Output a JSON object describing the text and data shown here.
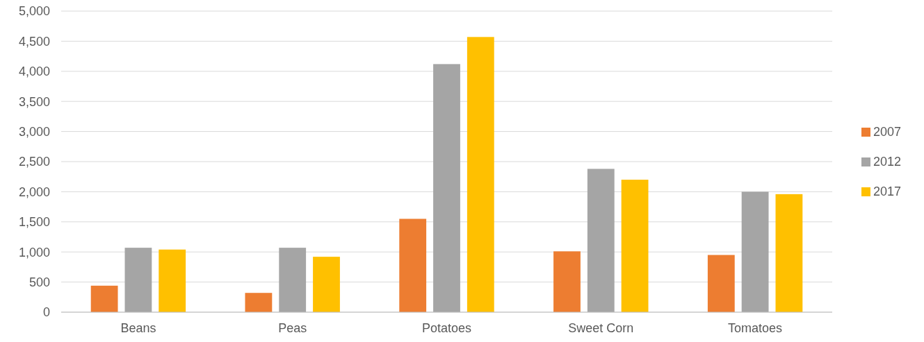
{
  "chart_data": {
    "type": "bar",
    "categories": [
      "Beans",
      "Peas",
      "Potatoes",
      "Sweet Corn",
      "Tomatoes"
    ],
    "series": [
      {
        "name": "2007",
        "color": "#ed7d31",
        "values": [
          440,
          320,
          1550,
          1010,
          950
        ]
      },
      {
        "name": "2012",
        "color": "#a5a5a5",
        "values": [
          1070,
          1070,
          4120,
          2380,
          2000
        ]
      },
      {
        "name": "2017",
        "color": "#ffc000",
        "values": [
          1040,
          920,
          4570,
          2200,
          1960
        ]
      }
    ],
    "ylim": [
      0,
      5000
    ],
    "yticks": [
      {
        "value": 0,
        "label": "0"
      },
      {
        "value": 500,
        "label": "500"
      },
      {
        "value": 1000,
        "label": "1,000"
      },
      {
        "value": 1500,
        "label": "1,500"
      },
      {
        "value": 2000,
        "label": "2,000"
      },
      {
        "value": 2500,
        "label": "2,500"
      },
      {
        "value": 3000,
        "label": "3,000"
      },
      {
        "value": 3500,
        "label": "3,500"
      },
      {
        "value": 4000,
        "label": "4,000"
      },
      {
        "value": 4500,
        "label": "4,500"
      },
      {
        "value": 5000,
        "label": "5,000"
      }
    ],
    "grid": "y",
    "legend": "right"
  }
}
